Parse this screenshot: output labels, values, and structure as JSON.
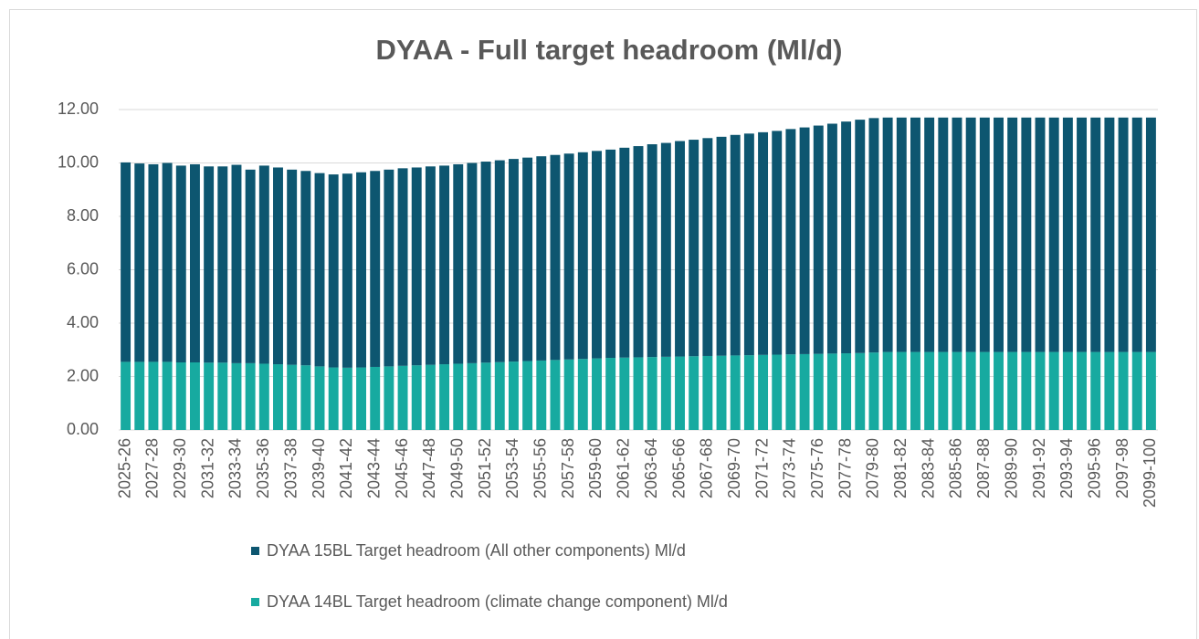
{
  "chart_data": {
    "type": "stacked_bar",
    "title": "DYAA - Full target headroom (Ml/d)",
    "categories": [
      "2025-26",
      null,
      "2027-28",
      null,
      "2029-30",
      null,
      "2031-32",
      null,
      "2033-34",
      null,
      "2035-36",
      null,
      "2037-38",
      null,
      "2039-40",
      null,
      "2041-42",
      null,
      "2043-44",
      null,
      "2045-46",
      null,
      "2047-48",
      null,
      "2049-50",
      null,
      "2051-52",
      null,
      "2053-54",
      null,
      "2055-56",
      null,
      "2057-58",
      null,
      "2059-60",
      null,
      "2061-62",
      null,
      "2063-64",
      null,
      "2065-66",
      null,
      "2067-68",
      null,
      "2069-70",
      null,
      "2071-72",
      null,
      "2073-74",
      null,
      "2075-76",
      null,
      "2077-78",
      null,
      "2079-80",
      null,
      "2081-82",
      null,
      "2083-84",
      null,
      "2085-86",
      null,
      "2087-88",
      null,
      "2089-90",
      null,
      "2091-92",
      null,
      "2093-94",
      null,
      "2095-96",
      null,
      "2097-98",
      null,
      "2099-100"
    ],
    "series": [
      {
        "name": "DYAA 15BL Target headroom (All other components) Ml/d",
        "color": "#0d5670",
        "values": [
          7.47,
          7.43,
          7.4,
          7.45,
          7.37,
          7.42,
          7.35,
          7.35,
          7.43,
          7.25,
          7.42,
          7.37,
          7.31,
          7.28,
          7.24,
          7.23,
          7.27,
          7.31,
          7.34,
          7.37,
          7.4,
          7.41,
          7.43,
          7.44,
          7.47,
          7.5,
          7.53,
          7.56,
          7.59,
          7.62,
          7.65,
          7.68,
          7.71,
          7.74,
          7.77,
          7.8,
          7.86,
          7.91,
          7.97,
          8.01,
          8.07,
          8.11,
          8.16,
          8.2,
          8.26,
          8.3,
          8.34,
          8.38,
          8.44,
          8.49,
          8.55,
          8.61,
          8.68,
          8.74,
          8.78,
          8.78,
          8.78,
          8.78,
          8.78,
          8.78,
          8.78,
          8.78,
          8.78,
          8.78,
          8.78,
          8.78,
          8.78,
          8.78,
          8.78,
          8.78,
          8.78,
          8.78,
          8.78,
          8.78,
          8.78
        ]
      },
      {
        "name": "DYAA 14BL Target headroom (climate change component) Ml/d",
        "color": "#17aaa0",
        "values": [
          2.55,
          2.55,
          2.55,
          2.55,
          2.53,
          2.53,
          2.52,
          2.52,
          2.5,
          2.5,
          2.48,
          2.46,
          2.44,
          2.42,
          2.38,
          2.34,
          2.33,
          2.34,
          2.36,
          2.38,
          2.4,
          2.42,
          2.44,
          2.46,
          2.48,
          2.5,
          2.52,
          2.54,
          2.56,
          2.58,
          2.6,
          2.62,
          2.64,
          2.66,
          2.68,
          2.7,
          2.71,
          2.72,
          2.73,
          2.74,
          2.75,
          2.76,
          2.77,
          2.78,
          2.79,
          2.8,
          2.81,
          2.82,
          2.83,
          2.84,
          2.85,
          2.86,
          2.87,
          2.88,
          2.9,
          2.92,
          2.92,
          2.92,
          2.92,
          2.92,
          2.92,
          2.92,
          2.92,
          2.92,
          2.92,
          2.92,
          2.92,
          2.92,
          2.92,
          2.92,
          2.92,
          2.92,
          2.92,
          2.92,
          2.92
        ]
      }
    ],
    "ylim": [
      0,
      12
    ],
    "yticks": [
      {
        "value": 0,
        "label": "0.00"
      },
      {
        "value": 2,
        "label": "2.00"
      },
      {
        "value": 4,
        "label": "4.00"
      },
      {
        "value": 6,
        "label": "6.00"
      },
      {
        "value": 8,
        "label": "8.00"
      },
      {
        "value": 10,
        "label": "10.00"
      },
      {
        "value": 12,
        "label": "12.00"
      }
    ],
    "grid": true
  }
}
